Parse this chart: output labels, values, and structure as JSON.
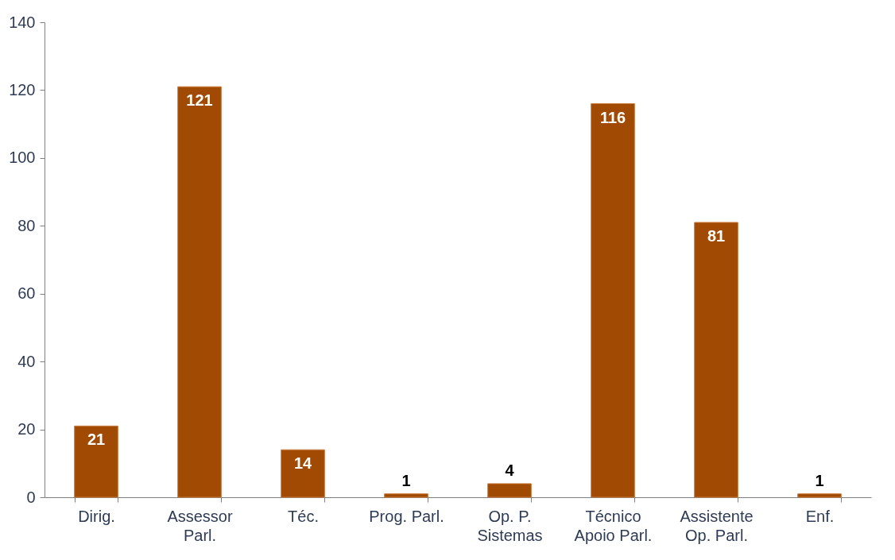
{
  "chart_data": {
    "type": "bar",
    "categories": [
      "Dirig.",
      "Assessor\nParl.",
      "Téc.",
      "Prog. Parl.",
      "Op. P.\nSistemas",
      "Técnico\nApoio Parl.",
      "Assistente\nOp. Parl.",
      "Enf."
    ],
    "values": [
      21,
      121,
      14,
      1,
      4,
      116,
      81,
      1
    ],
    "color": "#a04a03",
    "ylim": [
      0,
      140
    ],
    "yticks": [
      0,
      20,
      40,
      60,
      80,
      100,
      120,
      140
    ],
    "grid": false,
    "data_labels": true
  }
}
